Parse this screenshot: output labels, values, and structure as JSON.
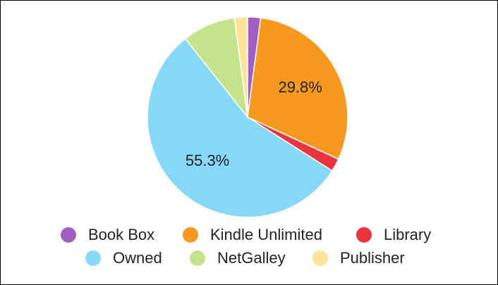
{
  "chart_data": {
    "type": "pie",
    "categories": [
      "Book Box",
      "Kindle Unlimited",
      "Library",
      "Owned",
      "NetGalley",
      "Publisher"
    ],
    "values": [
      2.1,
      29.8,
      2.1,
      55.3,
      8.6,
      2.1
    ],
    "value_labels": [
      null,
      "29.8%",
      null,
      "55.3%",
      null,
      null
    ],
    "colors": [
      "#a05ec0",
      "#f7991f",
      "#e8353e",
      "#87d7f7",
      "#c5e38a",
      "#fde49a"
    ],
    "legend": "bottom"
  }
}
